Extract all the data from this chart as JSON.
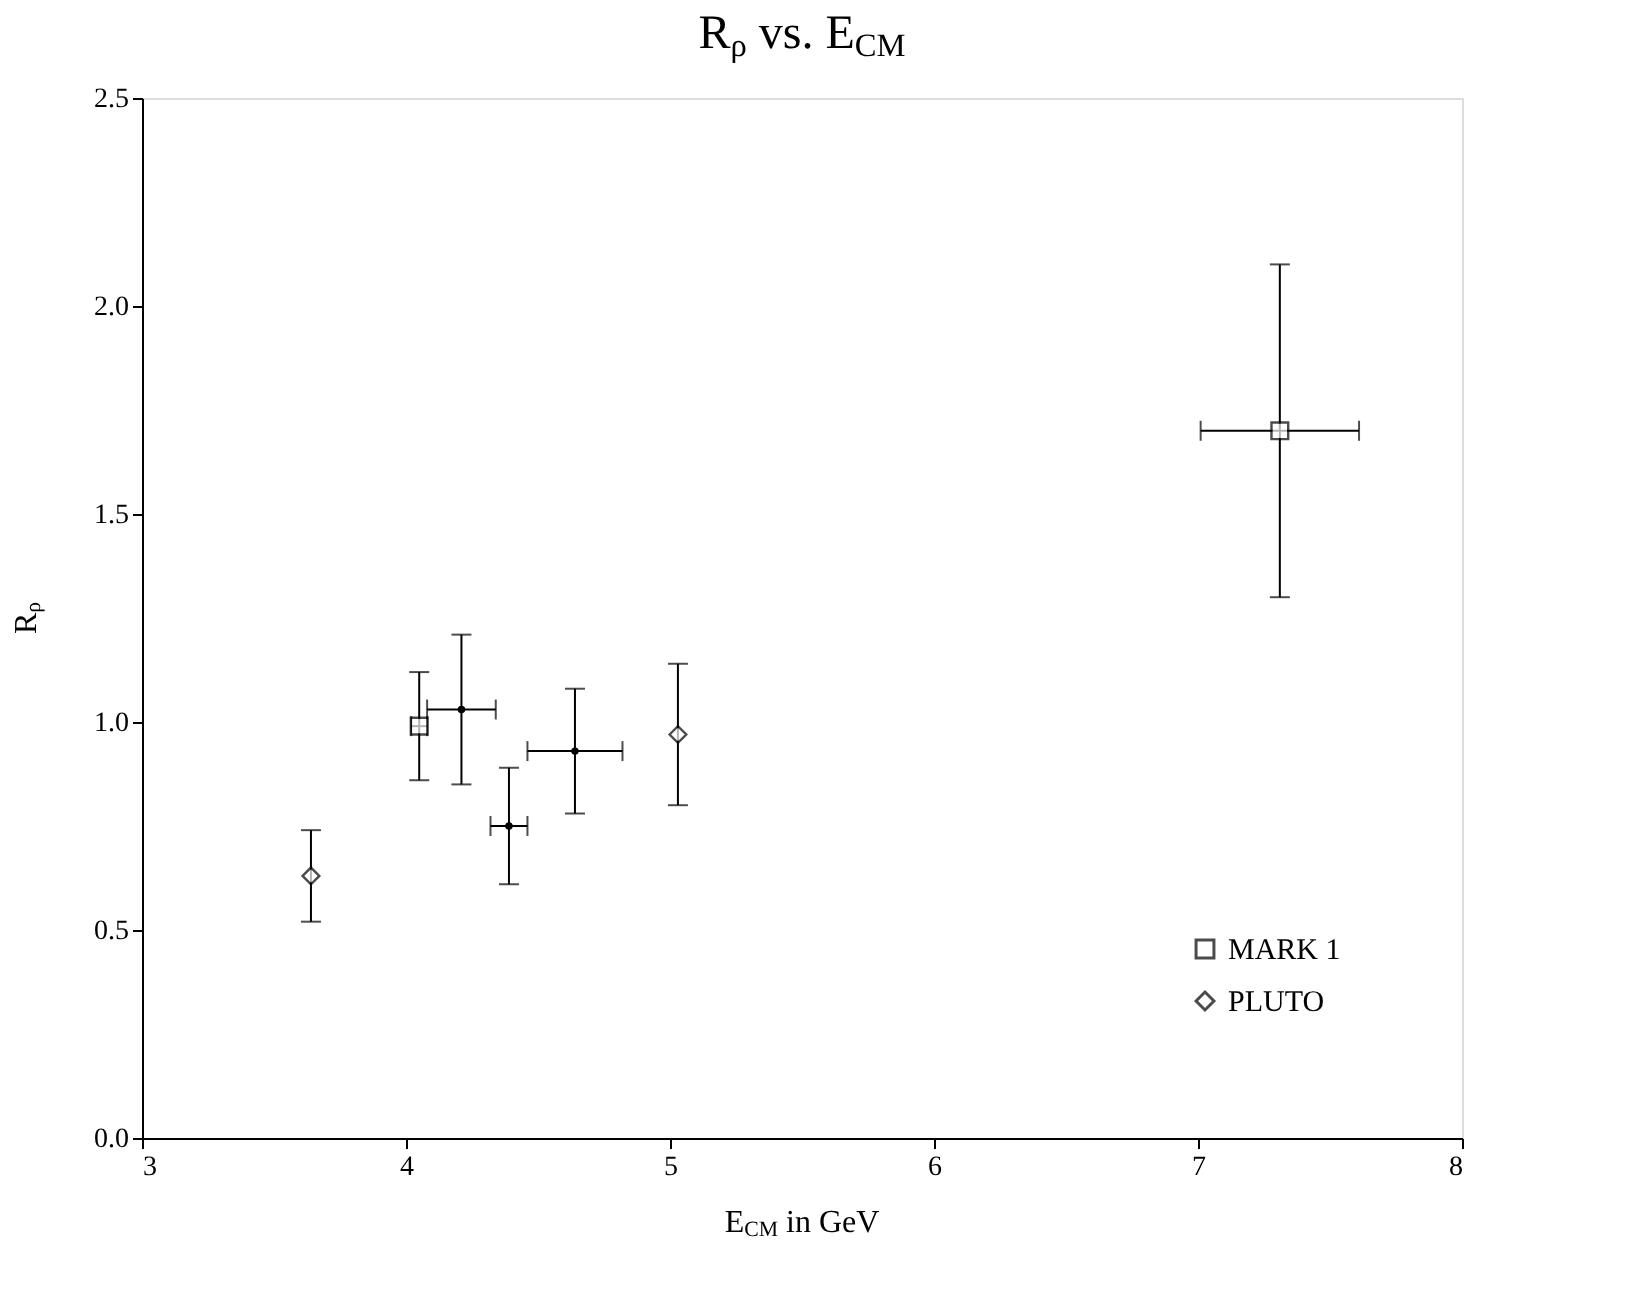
{
  "chart_data": {
    "type": "scatter",
    "title": "R$_{ρ}$ vs. E$_{CM}$",
    "xlabel": "E$_{CM}$ in GeV",
    "ylabel": "R$_{ρ}$",
    "xlim": [
      3,
      8
    ],
    "xticks": [
      3,
      4,
      5,
      6,
      7,
      8
    ],
    "ylim": [
      0,
      2.5
    ],
    "yticks": [
      {
        "value": 0,
        "label": "0.0"
      },
      {
        "value": 0.5,
        "label": "0.5"
      },
      {
        "value": 1,
        "label": "1.0"
      },
      {
        "value": 1.5,
        "label": "1.5"
      },
      {
        "value": 2,
        "label": "2.0"
      },
      {
        "value": 2.5,
        "label": "2.5"
      }
    ],
    "grid": false,
    "legend": "bottom right",
    "series": [
      {
        "name": "MARK 1",
        "color": "#000000",
        "marker": "square",
        "x": [
          4.05,
          7.31
        ],
        "values": [
          0.99,
          1.7
        ],
        "errors": [
          0.13,
          0.4
        ],
        "xerrors": [
          0.03,
          0.3
        ]
      },
      {
        "name": "PLUTO",
        "color": "#000000",
        "marker": "diamond",
        "x": [
          3.64,
          5.03
        ],
        "values": [
          0.63,
          0.97
        ],
        "errors": [
          0.11,
          0.17
        ],
        "xerrors": [
          null,
          null
        ]
      },
      {
        "color": "#000000",
        "marker": "circle",
        "x": [
          4.21,
          4.39,
          4.64
        ],
        "values": [
          1.03,
          0.75,
          0.93
        ],
        "errors": [
          0.18,
          0.14,
          0.15
        ],
        "xerrors": [
          0.13,
          0.07,
          0.18
        ]
      }
    ]
  }
}
